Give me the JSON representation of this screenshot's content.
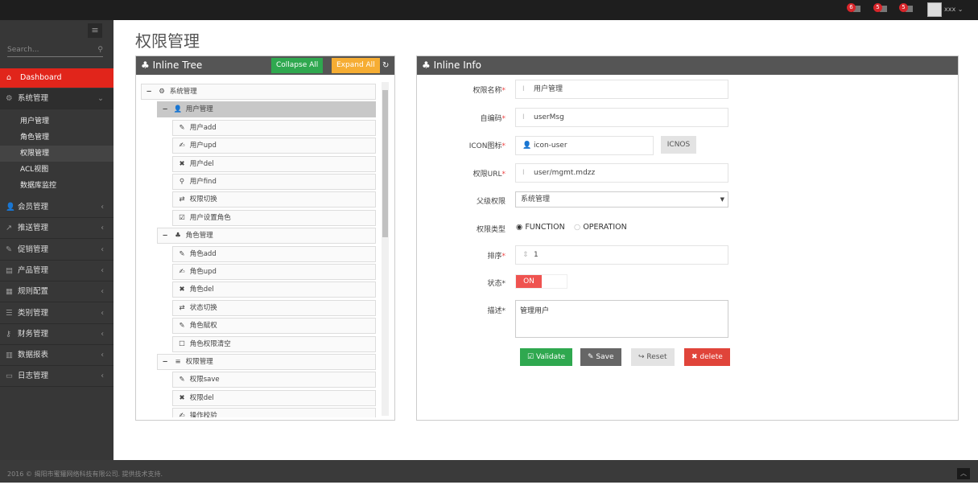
{
  "topbar": {
    "notifications": [
      {
        "count": "6",
        "icon": "bell-icon"
      },
      {
        "count": "5",
        "icon": "envelope-icon"
      },
      {
        "count": "5",
        "icon": "tasks-icon"
      }
    ],
    "username": "xxx"
  },
  "sidebar": {
    "search_placeholder": "Search...",
    "dashboard": "Dashboard",
    "system": "系统管理",
    "sub_items": [
      "用户管理",
      "角色管理",
      "权限管理",
      "ACL视图",
      "数据库监控"
    ],
    "items": [
      {
        "label": "会员管理",
        "icon": "user-icon"
      },
      {
        "label": "推送管理",
        "icon": "share-icon"
      },
      {
        "label": "促销管理",
        "icon": "pencil-icon"
      },
      {
        "label": "产品管理",
        "icon": "book-icon"
      },
      {
        "label": "规则配置",
        "icon": "list-alt-icon"
      },
      {
        "label": "类别管理",
        "icon": "list-icon"
      },
      {
        "label": "财务管理",
        "icon": "key-icon"
      },
      {
        "label": "数据报表",
        "icon": "chart-icon"
      },
      {
        "label": "日志管理",
        "icon": "credit-card-icon"
      }
    ]
  },
  "page_title": "权限管理",
  "tree_panel": {
    "title": "Inline Tree",
    "collapse_all": "Collapse All",
    "expand_all": "Expand All",
    "nodes": [
      {
        "level": 0,
        "toggle": "−",
        "icon": "⚙",
        "label": "系统管理"
      },
      {
        "level": 1,
        "toggle": "−",
        "icon": "👤",
        "label": "用户管理",
        "selected": true
      },
      {
        "level": 2,
        "icon": "✎",
        "label": "用户add"
      },
      {
        "level": 2,
        "icon": "✍",
        "label": "用户upd"
      },
      {
        "level": 2,
        "icon": "✖",
        "label": "用户del"
      },
      {
        "level": 2,
        "icon": "⚲",
        "label": "用户find"
      },
      {
        "level": 2,
        "icon": "⇄",
        "label": "权限切换"
      },
      {
        "level": 2,
        "icon": "☑",
        "label": "用户设置角色"
      },
      {
        "level": 1,
        "toggle": "−",
        "icon": "♣",
        "label": "角色管理"
      },
      {
        "level": 2,
        "icon": "✎",
        "label": "角色add"
      },
      {
        "level": 2,
        "icon": "✍",
        "label": "角色upd"
      },
      {
        "level": 2,
        "icon": "✖",
        "label": "角色del"
      },
      {
        "level": 2,
        "icon": "⇄",
        "label": "状态切换"
      },
      {
        "level": 2,
        "icon": "✎",
        "label": "角色赋权"
      },
      {
        "level": 2,
        "icon": "☐",
        "label": "角色权限清空"
      },
      {
        "level": 1,
        "toggle": "−",
        "icon": "≡",
        "label": "权限管理"
      },
      {
        "level": 2,
        "icon": "✎",
        "label": "权限save"
      },
      {
        "level": 2,
        "icon": "✖",
        "label": "权限del"
      },
      {
        "level": 2,
        "icon": "✍",
        "label": "操作校验"
      }
    ]
  },
  "info_panel": {
    "title": "Inline Info",
    "fields": {
      "name_label": "权限名称",
      "name": "用户管理",
      "code_label": "自编码",
      "code": "userMsg",
      "icon_label": "ICON图标",
      "icon_value": "icon-user",
      "icnos": "ICNOS",
      "url_label": "权限URL",
      "url": "user/mgmt.mdzz",
      "parent_label": "父级权限",
      "parent": "系统管理",
      "type_label": "权限类型",
      "type_options": [
        "FUNCTION",
        "OPERATION"
      ],
      "type_selected": "FUNCTION",
      "order_label": "排序",
      "order": "1",
      "status_label": "状态",
      "status": "ON",
      "desc_label": "描述",
      "desc": "管理用户"
    },
    "buttons": {
      "validate": "Validate",
      "save": "Save",
      "reset": "Reset",
      "delete": "delete"
    }
  },
  "colors": {
    "accent": "#e1251b",
    "green": "#2fa84f",
    "orange": "#f6ad33",
    "danger": "#e0443a"
  },
  "footer": "2016 © 揭阳市蜜獾网络科技有限公司. 提供技术支持."
}
